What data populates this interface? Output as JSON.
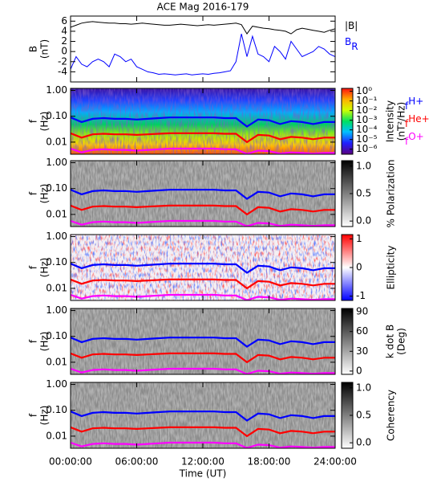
{
  "chart_data": [
    {
      "type": "line",
      "title": "ACE Mag 2016-179",
      "ylabel": [
        "B",
        "(nT)"
      ],
      "x": [
        0,
        0.5,
        1,
        1.5,
        2,
        2.5,
        3,
        3.5,
        4,
        4.5,
        5,
        5.5,
        6,
        6.5,
        7,
        7.5,
        8,
        8.5,
        9,
        9.5,
        10,
        10.5,
        11,
        11.5,
        12,
        12.5,
        13,
        13.5,
        14,
        14.5,
        15,
        15.5,
        16,
        16.5,
        17,
        17.5,
        18,
        18.5,
        19,
        19.5,
        20,
        20.5,
        21,
        21.5,
        22,
        22.5,
        23,
        23.5,
        24
      ],
      "series": [
        {
          "name": "|B|",
          "color": "#000000",
          "values": [
            4.8,
            5.2,
            5.6,
            5.8,
            5.9,
            5.8,
            5.7,
            5.6,
            5.6,
            5.5,
            5.5,
            5.4,
            5.5,
            5.6,
            5.5,
            5.4,
            5.3,
            5.2,
            5.2,
            5.3,
            5.4,
            5.3,
            5.2,
            5.1,
            5.2,
            5.3,
            5.2,
            5.3,
            5.4,
            5.5,
            5.6,
            5.3,
            3.5,
            5.0,
            4.8,
            4.6,
            4.5,
            4.3,
            4.2,
            4.0,
            3.5,
            4.3,
            4.6,
            4.4,
            4.2,
            4.0,
            3.8,
            4.2,
            4.5
          ]
        },
        {
          "name": "B",
          "subscript": "R",
          "color": "#0000ff",
          "values": [
            -3.5,
            -1,
            -2.5,
            -3,
            -2,
            -1.5,
            -2,
            -3,
            -0.5,
            -1,
            -2,
            -1.5,
            -3,
            -3.5,
            -4,
            -4.2,
            -4.5,
            -4.4,
            -4.5,
            -4.6,
            -4.5,
            -4.4,
            -4.6,
            -4.5,
            -4.4,
            -4.5,
            -4.3,
            -4.2,
            -4,
            -3.8,
            -2,
            3.5,
            -1,
            3,
            -0.5,
            -1,
            -2,
            1,
            0,
            -1.5,
            2,
            0.5,
            -1,
            -0.5,
            0,
            1,
            0.5,
            -0.5,
            -1
          ]
        }
      ],
      "ylim": [
        -6,
        7
      ],
      "yticks": [
        -4,
        -2,
        0,
        2,
        4,
        6
      ],
      "legend": "outside-right"
    },
    {
      "type": "spectrogram",
      "ylabel": [
        "f",
        "(Hz)"
      ],
      "yscale": "log",
      "ylim": [
        0.0034,
        1.2
      ],
      "yticks": [
        {
          "value": 1,
          "label": "1.00"
        },
        {
          "value": 0.1,
          "label": "0.10"
        },
        {
          "value": 0.01,
          "label": "0.01"
        }
      ],
      "colormap": "rainbow",
      "zscale": "log",
      "zlim": [
        3e-07,
        2
      ],
      "zticks": [
        {
          "value": 1,
          "label": "10⁰"
        },
        {
          "value": 0.1,
          "label": "10⁻¹"
        },
        {
          "value": 0.01,
          "label": "10⁻²"
        },
        {
          "value": 0.001,
          "label": "10⁻³"
        },
        {
          "value": 0.0001,
          "label": "10⁻⁴"
        },
        {
          "value": 1e-05,
          "label": "10⁻⁵"
        },
        {
          "value": 1e-06,
          "label": "10⁻⁶"
        }
      ],
      "zlabel": [
        "Intensity",
        "(nT²/Hz)"
      ],
      "legend": "outside-right",
      "x": [
        0,
        1,
        2,
        3,
        4,
        5,
        6,
        7,
        8,
        9,
        10,
        11,
        12,
        13,
        14,
        15,
        16,
        17,
        18,
        19,
        20,
        21,
        22,
        23,
        24
      ],
      "series": [
        {
          "name": "f",
          "subscript": "H+",
          "color": "#0000ff",
          "values": [
            0.09,
            0.06,
            0.08,
            0.085,
            0.08,
            0.08,
            0.075,
            0.08,
            0.085,
            0.09,
            0.09,
            0.09,
            0.09,
            0.09,
            0.085,
            0.085,
            0.04,
            0.075,
            0.07,
            0.05,
            0.065,
            0.06,
            0.05,
            0.06,
            0.06
          ]
        },
        {
          "name": "f",
          "subscript": "He+",
          "color": "#ff0000",
          "values": [
            0.022,
            0.015,
            0.02,
            0.021,
            0.02,
            0.02,
            0.019,
            0.02,
            0.021,
            0.022,
            0.022,
            0.022,
            0.022,
            0.022,
            0.021,
            0.021,
            0.01,
            0.019,
            0.018,
            0.013,
            0.016,
            0.015,
            0.013,
            0.015,
            0.015
          ]
        },
        {
          "name": "f",
          "subscript": "O+",
          "color": "#ff00ff",
          "values": [
            0.0056,
            0.004,
            0.005,
            0.0053,
            0.005,
            0.005,
            0.0047,
            0.005,
            0.0053,
            0.0056,
            0.0056,
            0.0056,
            0.0056,
            0.0056,
            0.0053,
            0.0053,
            0.0035,
            0.0047,
            0.0045,
            0.0036,
            0.004,
            0.0038,
            0.0036,
            0.0038,
            0.0038
          ]
        }
      ]
    },
    {
      "type": "spectrogram",
      "ylabel": [
        "f",
        "(Hz)"
      ],
      "yscale": "log",
      "ylim": [
        0.0034,
        1.2
      ],
      "yticks": [
        {
          "value": 1,
          "label": "1.00"
        },
        {
          "value": 0.1,
          "label": "0.10"
        },
        {
          "value": 0.01,
          "label": "0.01"
        }
      ],
      "colormap": "gray",
      "zlim": [
        -0.1,
        1.1
      ],
      "zticks": [
        {
          "value": 0,
          "label": "0.0"
        },
        {
          "value": 0.5,
          "label": "0.5"
        },
        {
          "value": 1,
          "label": "1.0"
        }
      ],
      "zlabel": [
        "% Polarization"
      ]
    },
    {
      "type": "spectrogram",
      "ylabel": [
        "f",
        "(Hz)"
      ],
      "yscale": "log",
      "ylim": [
        0.0034,
        1.2
      ],
      "yticks": [
        {
          "value": 1,
          "label": "1.00"
        },
        {
          "value": 0.1,
          "label": "0.10"
        },
        {
          "value": 0.01,
          "label": "0.01"
        }
      ],
      "colormap": "bwr",
      "zlim": [
        -1.15,
        1.15
      ],
      "zticks": [
        -1,
        0,
        1
      ],
      "zlabel": [
        "Ellipticity"
      ]
    },
    {
      "type": "spectrogram",
      "ylabel": [
        "f",
        "(Hz)"
      ],
      "yscale": "log",
      "ylim": [
        0.0034,
        1.2
      ],
      "yticks": [
        {
          "value": 1,
          "label": "1.00"
        },
        {
          "value": 0.1,
          "label": "0.10"
        },
        {
          "value": 0.01,
          "label": "0.01"
        }
      ],
      "colormap": "gray",
      "zlim": [
        -5,
        95
      ],
      "zticks": [
        0,
        30,
        60,
        90
      ],
      "zlabel": [
        "k dot B",
        "(Deg)"
      ]
    },
    {
      "type": "spectrogram",
      "ylabel": [
        "f",
        "(Hz)"
      ],
      "yscale": "log",
      "ylim": [
        0.0034,
        1.2
      ],
      "yticks": [
        {
          "value": 1,
          "label": "1.00"
        },
        {
          "value": 0.1,
          "label": "0.10"
        },
        {
          "value": 0.01,
          "label": "0.01"
        }
      ],
      "colormap": "gray",
      "zlim": [
        -0.1,
        1.1
      ],
      "zticks": [
        {
          "value": 0,
          "label": "0.0"
        },
        {
          "value": 0.5,
          "label": "0.5"
        },
        {
          "value": 1,
          "label": "1.0"
        }
      ],
      "zlabel": [
        "Coherency"
      ],
      "xlim": [
        0,
        24
      ],
      "xticks": [
        {
          "value": 0,
          "label": "00:00:00"
        },
        {
          "value": 6,
          "label": "06:00:00"
        },
        {
          "value": 12,
          "label": "12:00:00"
        },
        {
          "value": 18,
          "label": "18:00:00"
        },
        {
          "value": 24,
          "label": "24:00:00"
        }
      ],
      "xlabel": "Time (UT)"
    }
  ]
}
